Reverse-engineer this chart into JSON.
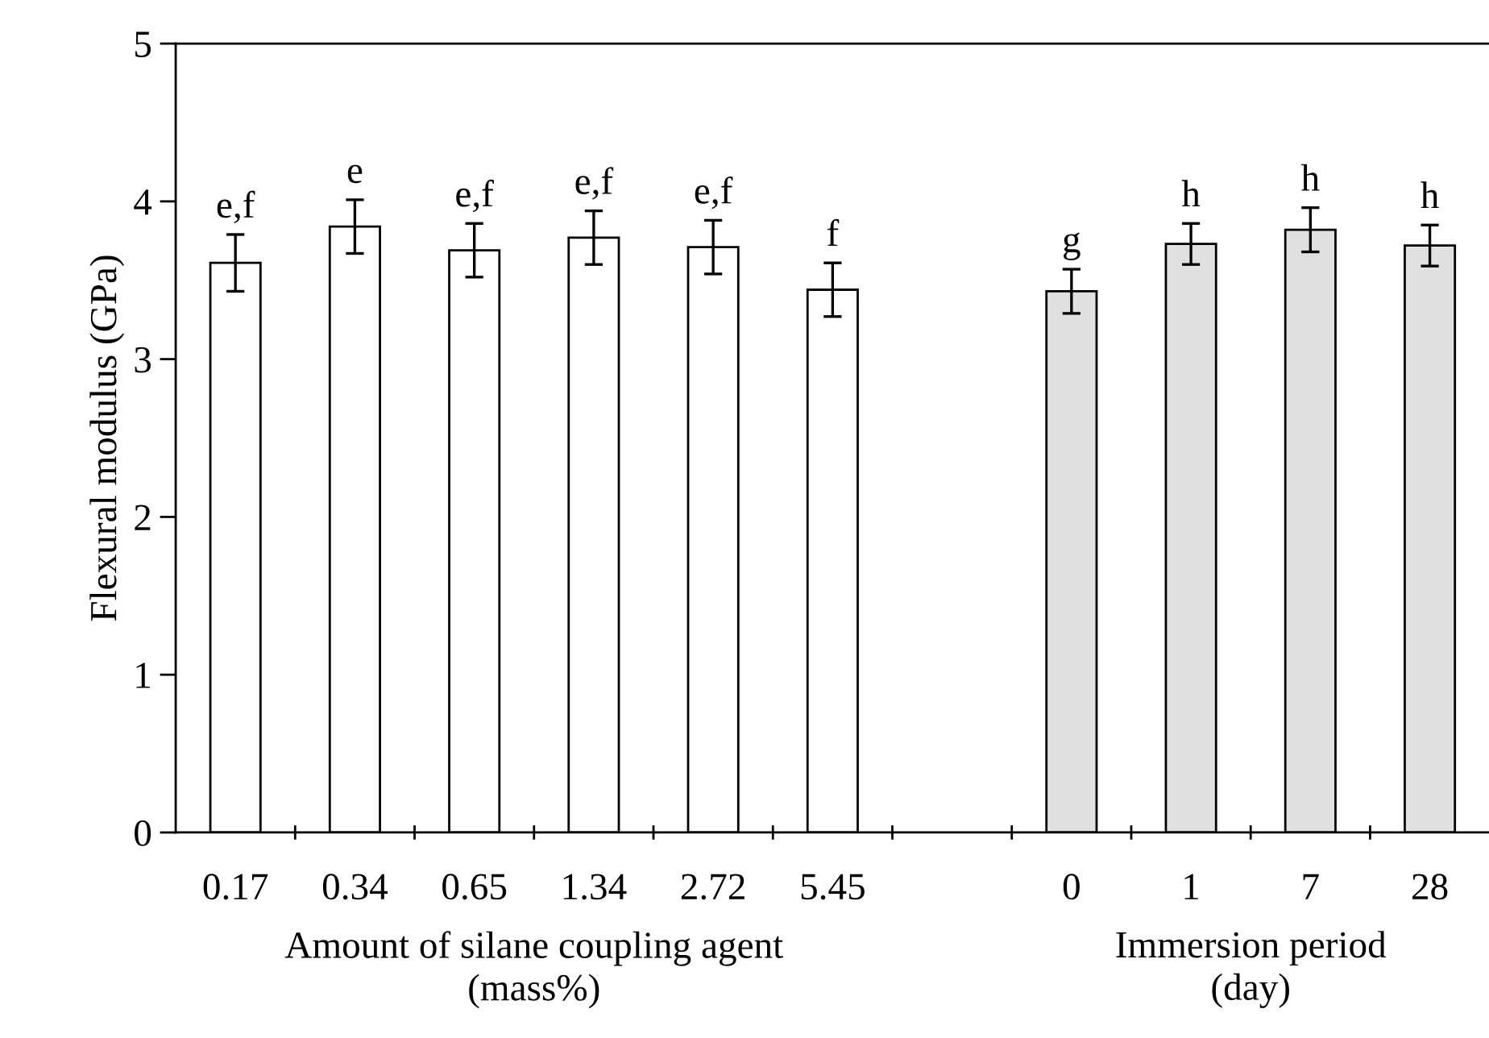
{
  "chart_data": {
    "type": "bar",
    "ylabel": "Flexural modulus (GPa)",
    "categories": [
      "0.17",
      "0.34",
      "0.65",
      "1.34",
      "2.72",
      "5.45",
      null,
      "0",
      "1",
      "7",
      "28"
    ],
    "values": [
      3.61,
      3.84,
      3.69,
      3.77,
      3.71,
      3.44,
      null,
      3.43,
      3.73,
      3.82,
      3.72
    ],
    "errors": [
      0.18,
      0.17,
      0.17,
      0.17,
      0.17,
      0.17,
      null,
      0.14,
      0.13,
      0.14,
      0.13
    ],
    "colors": [
      "#ffffff",
      "#ffffff",
      "#ffffff",
      "#ffffff",
      "#ffffff",
      "#ffffff",
      null,
      "#e0e0e0",
      "#e0e0e0",
      "#e0e0e0",
      "#e0e0e0"
    ],
    "ylim": [
      0,
      5
    ],
    "yticks": [
      0,
      1,
      2,
      3,
      4,
      5
    ],
    "grid": false,
    "legend": false,
    "annotations": [
      {
        "text": "e,f",
        "x": "0.17",
        "y": 3.79
      },
      {
        "text": "e",
        "x": "0.34",
        "y": 4.01
      },
      {
        "text": "e,f",
        "x": "0.65",
        "y": 3.86
      },
      {
        "text": "e,f",
        "x": "1.34",
        "y": 3.94
      },
      {
        "text": "e,f",
        "x": "2.72",
        "y": 3.88
      },
      {
        "text": "f",
        "x": "5.45",
        "y": 3.61
      },
      {
        "text": "g",
        "x": "0",
        "y": 3.57
      },
      {
        "text": "h",
        "x": "1",
        "y": 3.86
      },
      {
        "text": "h",
        "x": "7",
        "y": 3.96
      },
      {
        "text": "h",
        "x": "28",
        "y": 3.85
      },
      "Amount of silane coupling agent\n(mass%)",
      "Immersion period\n(day)"
    ]
  }
}
